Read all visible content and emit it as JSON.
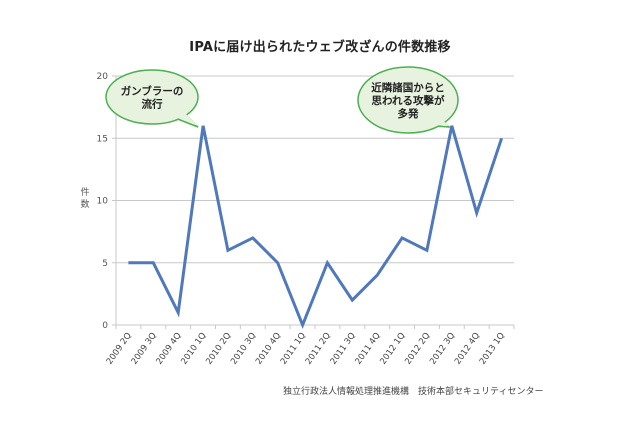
{
  "chart_data": {
    "type": "line",
    "title": "IPAに届け出られたウェブ改ざんの件数推移",
    "xlabel": "",
    "ylabel": "件数",
    "ylim": [
      0,
      20
    ],
    "yticks": [
      0,
      5,
      10,
      15,
      20
    ],
    "grid": true,
    "legend": null,
    "categories": [
      "2009 2Q",
      "2009 3Q",
      "2009 4Q",
      "2010 1Q",
      "2010 2Q",
      "2010 3Q",
      "2010 4Q",
      "2011 1Q",
      "2011 2Q",
      "2011 3Q",
      "2011 4Q",
      "2012 1Q",
      "2012 2Q",
      "2012 3Q",
      "2012 4Q",
      "2013 1Q"
    ],
    "series": [
      {
        "name": "件数",
        "color": "#4f78bd",
        "values": [
          5,
          5,
          1,
          16,
          6,
          7,
          5,
          0,
          5,
          2,
          4,
          7,
          6,
          16,
          9,
          15
        ]
      }
    ],
    "annotations": [
      {
        "text_lines": [
          "ガンブラーの",
          "流行"
        ],
        "points_to": "2010 1Q"
      },
      {
        "text_lines": [
          "近隣諸国からと",
          "思われる攻撃が",
          "多発"
        ],
        "points_to": "2012 3Q"
      }
    ],
    "source": "独立行政法人情報処理推進機構　技術本部セキュリティセンター"
  },
  "title": "IPAに届け出られたウェブ改ざんの件数推移",
  "ylabel_chars": [
    "件",
    "数"
  ],
  "source": "独立行政法人情報処理推進機構　技術本部セキュリティセンター",
  "colors": {
    "line": "#4f78bd",
    "grid": "#c8c8c8",
    "callout_fill": "#e8f3df",
    "callout_border": "#4caf50"
  }
}
